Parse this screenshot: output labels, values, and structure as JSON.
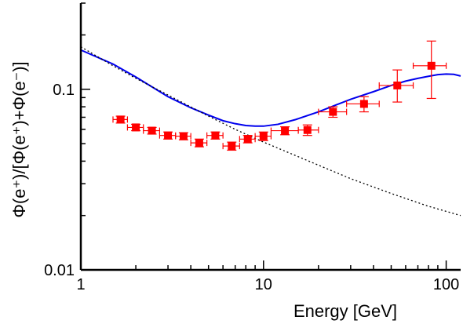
{
  "chart_data": {
    "type": "scatter",
    "title": "",
    "xlabel": "Energy [GeV]",
    "ylabel": "Φ(e⁺)/[Φ(e⁺)+Φ(e⁻)]",
    "xscale": "log",
    "yscale": "log",
    "xlim": [
      1,
      120
    ],
    "ylim": [
      0.01,
      0.3
    ],
    "x_ticks": [
      {
        "value": 1,
        "label": "1"
      },
      {
        "value": 10,
        "label": "10"
      },
      {
        "value": 100,
        "label": "100"
      }
    ],
    "y_ticks": [
      {
        "value": 0.01,
        "label": "0.01"
      },
      {
        "value": 0.1,
        "label": "0.1"
      }
    ],
    "grid": false,
    "legend": "none",
    "colors": {
      "data": "#ff0000",
      "solid_curve": "#0000ee",
      "dotted_curve": "#000000"
    },
    "series": [
      {
        "kind": "points-with-errorbars",
        "marker": "filled-square",
        "points": [
          {
            "x": 1.65,
            "y": 0.068,
            "xlo": 1.5,
            "xhi": 1.8,
            "ylo": 0.065,
            "yhi": 0.071
          },
          {
            "x": 2.0,
            "y": 0.0615,
            "xlo": 1.8,
            "xhi": 2.2,
            "ylo": 0.059,
            "yhi": 0.064
          },
          {
            "x": 2.45,
            "y": 0.059,
            "xlo": 2.2,
            "xhi": 2.7,
            "ylo": 0.0565,
            "yhi": 0.0615
          },
          {
            "x": 3.0,
            "y": 0.0555,
            "xlo": 2.7,
            "xhi": 3.3,
            "ylo": 0.053,
            "yhi": 0.058
          },
          {
            "x": 3.65,
            "y": 0.055,
            "xlo": 3.3,
            "xhi": 4.0,
            "ylo": 0.0525,
            "yhi": 0.0575
          },
          {
            "x": 4.45,
            "y": 0.0505,
            "xlo": 4.0,
            "xhi": 4.9,
            "ylo": 0.048,
            "yhi": 0.053
          },
          {
            "x": 5.45,
            "y": 0.0555,
            "xlo": 4.9,
            "xhi": 6.0,
            "ylo": 0.053,
            "yhi": 0.058
          },
          {
            "x": 6.7,
            "y": 0.0485,
            "xlo": 6.0,
            "xhi": 7.4,
            "ylo": 0.046,
            "yhi": 0.051
          },
          {
            "x": 8.2,
            "y": 0.053,
            "xlo": 7.4,
            "xhi": 9.0,
            "ylo": 0.0505,
            "yhi": 0.0555
          },
          {
            "x": 10.0,
            "y": 0.055,
            "xlo": 9.0,
            "xhi": 11.0,
            "ylo": 0.052,
            "yhi": 0.058
          },
          {
            "x": 13.1,
            "y": 0.059,
            "xlo": 11.0,
            "xhi": 15.5,
            "ylo": 0.056,
            "yhi": 0.062
          },
          {
            "x": 17.4,
            "y": 0.0595,
            "xlo": 15.5,
            "xhi": 20.0,
            "ylo": 0.0555,
            "yhi": 0.0635
          },
          {
            "x": 24.0,
            "y": 0.075,
            "xlo": 20.0,
            "xhi": 28.5,
            "ylo": 0.07,
            "yhi": 0.08
          },
          {
            "x": 35.5,
            "y": 0.083,
            "xlo": 28.5,
            "xhi": 43.0,
            "ylo": 0.075,
            "yhi": 0.091
          },
          {
            "x": 54.0,
            "y": 0.105,
            "xlo": 43.0,
            "xhi": 66.0,
            "ylo": 0.085,
            "yhi": 0.128
          },
          {
            "x": 83.0,
            "y": 0.135,
            "xlo": 66.0,
            "xhi": 100.0,
            "ylo": 0.089,
            "yhi": 0.185
          }
        ]
      },
      {
        "kind": "line",
        "style": "solid",
        "x": [
          1,
          1.5,
          2,
          3,
          4,
          5,
          6,
          7,
          8,
          9,
          10,
          12,
          15,
          20,
          25,
          30,
          40,
          50,
          60,
          70,
          80,
          90,
          100,
          110,
          120
        ],
        "y": [
          0.165,
          0.138,
          0.117,
          0.091,
          0.079,
          0.072,
          0.067,
          0.0645,
          0.063,
          0.0625,
          0.0625,
          0.064,
          0.068,
          0.075,
          0.082,
          0.088,
          0.097,
          0.105,
          0.111,
          0.115,
          0.118,
          0.1205,
          0.1215,
          0.121,
          0.1185
        ]
      },
      {
        "kind": "line",
        "style": "dotted",
        "x": [
          1,
          1.5,
          2,
          3,
          5,
          7,
          10,
          20,
          30,
          50,
          80,
          120
        ],
        "y": [
          0.172,
          0.135,
          0.115,
          0.093,
          0.071,
          0.06,
          0.051,
          0.038,
          0.032,
          0.0265,
          0.0225,
          0.02
        ]
      }
    ]
  }
}
